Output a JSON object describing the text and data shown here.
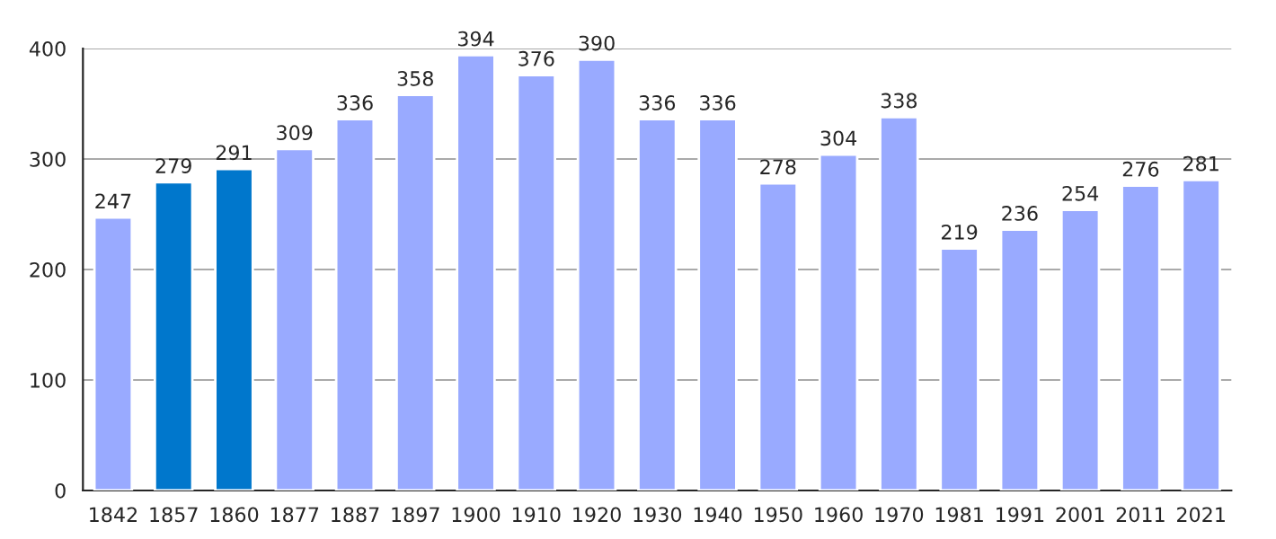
{
  "chart_data": {
    "type": "bar",
    "categories": [
      "1842",
      "1857",
      "1860",
      "1877",
      "1887",
      "1897",
      "1900",
      "1910",
      "1920",
      "1930",
      "1940",
      "1950",
      "1960",
      "1970",
      "1981",
      "1991",
      "2001",
      "2011",
      "2021"
    ],
    "values": [
      247,
      279,
      291,
      309,
      336,
      358,
      394,
      376,
      390,
      336,
      336,
      278,
      304,
      338,
      219,
      236,
      254,
      276,
      281
    ],
    "colors": [
      "#99aaff",
      "#0077cc",
      "#0077cc",
      "#99aaff",
      "#99aaff",
      "#99aaff",
      "#99aaff",
      "#99aaff",
      "#99aaff",
      "#99aaff",
      "#99aaff",
      "#99aaff",
      "#99aaff",
      "#99aaff",
      "#99aaff",
      "#99aaff",
      "#99aaff",
      "#99aaff",
      "#99aaff"
    ],
    "ylim": [
      0,
      400
    ],
    "yticks": [
      0,
      100,
      200,
      300,
      400
    ],
    "grid": "y",
    "data_labels": true
  }
}
